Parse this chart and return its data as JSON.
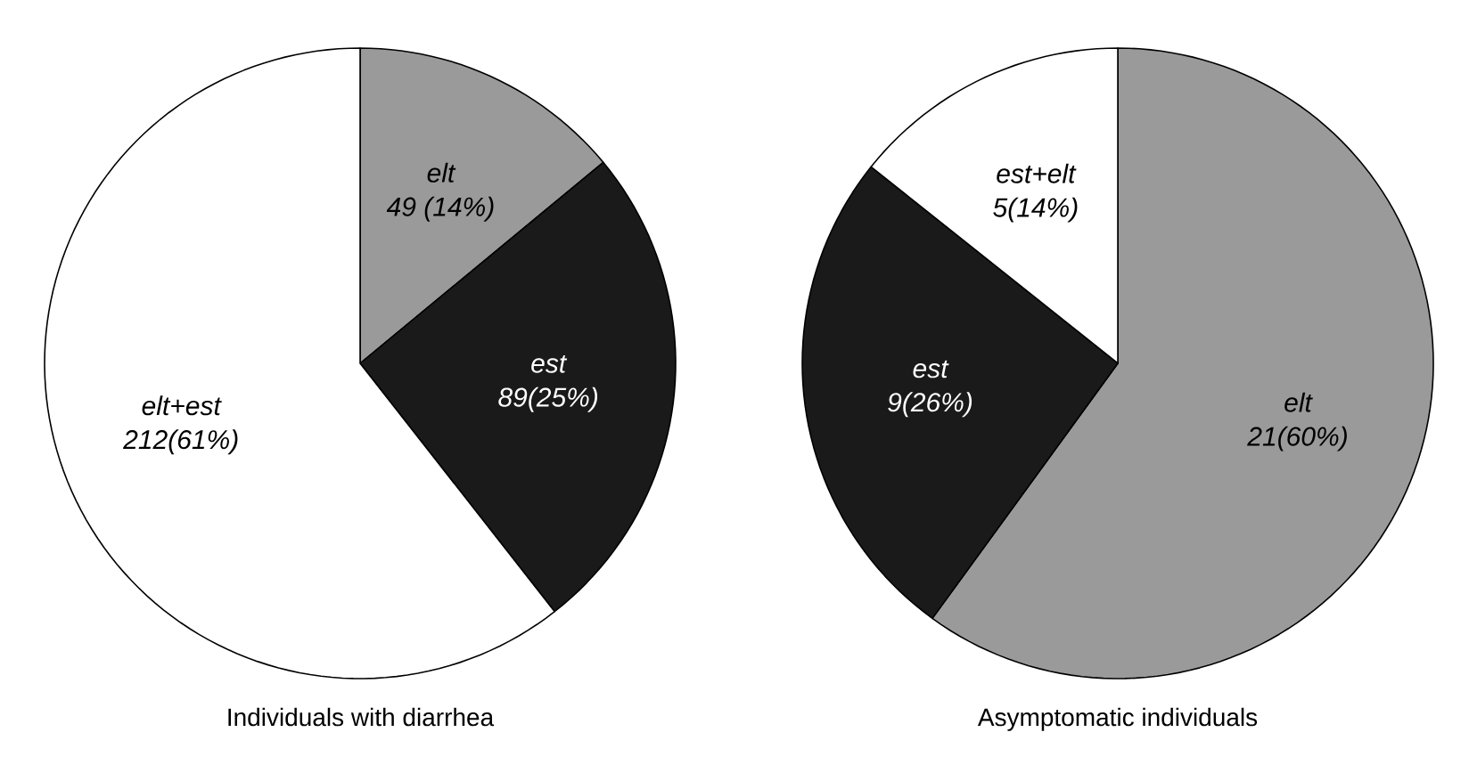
{
  "chart_data": [
    {
      "type": "pie",
      "title": "Individuals with diarrhea",
      "categories": [
        "elt",
        "est",
        "elt+est"
      ],
      "values": [
        49,
        89,
        212
      ],
      "colors": [
        "#9a9a9a",
        "#1a1a1a",
        "#ffffff"
      ],
      "value_labels": [
        "49 (14%)",
        "89(25%)",
        "212(61%)"
      ]
    },
    {
      "type": "pie",
      "title": "Asymptomatic individuals",
      "categories": [
        "elt",
        "est",
        "est+elt"
      ],
      "values": [
        21,
        9,
        5
      ],
      "colors": [
        "#9a9a9a",
        "#1a1a1a",
        "#ffffff"
      ],
      "value_labels": [
        "21(60%)",
        "9(26%)",
        "5(14%)"
      ]
    }
  ]
}
